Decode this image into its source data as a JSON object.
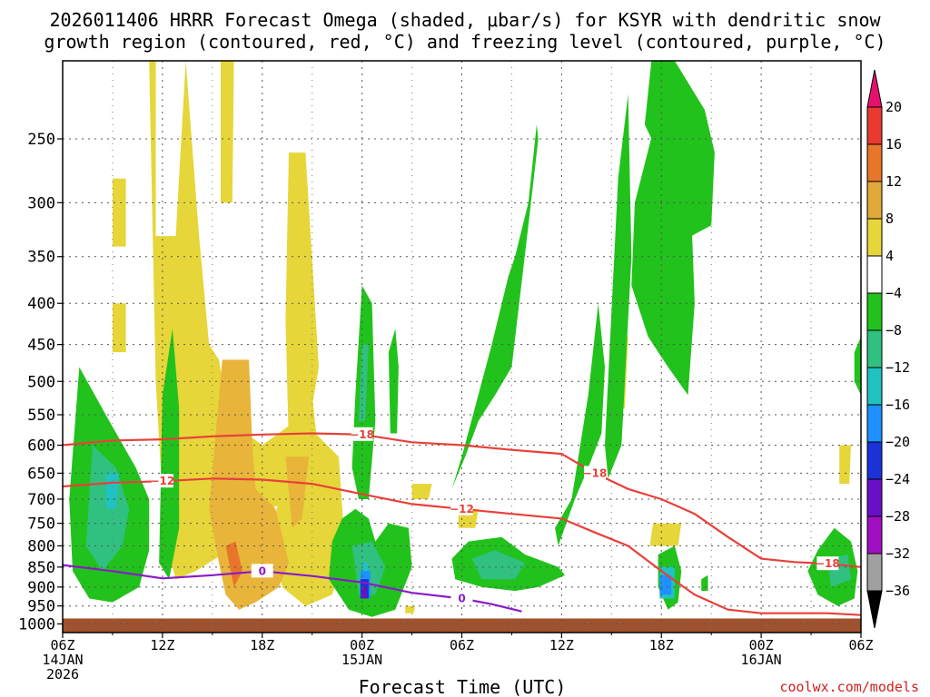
{
  "title_line1": "2026011406 HRRR Forecast Omega (shaded, μbar/s) for KSYR with dendritic snow",
  "title_line2": "growth region (contoured, red, °C) and freezing level (contoured, purple, °C)",
  "credit": "coolwx.com/models",
  "chart_data": {
    "type": "heatmap",
    "xlabel": "Forecast Time (UTC)",
    "ylabel": "",
    "x_unit": "forecast hours from 2026-01-14 06Z",
    "xlim": [
      0,
      48
    ],
    "ylim_hPa": [
      1025,
      200
    ],
    "y_ticks": [
      250,
      300,
      350,
      400,
      450,
      500,
      550,
      600,
      650,
      700,
      750,
      800,
      850,
      900,
      950,
      1000
    ],
    "x_ticks": [
      {
        "h": 0,
        "line1": "06Z",
        "line2": "14JAN",
        "line3": "2026"
      },
      {
        "h": 6,
        "line1": "12Z",
        "line2": "",
        "line3": ""
      },
      {
        "h": 12,
        "line1": "18Z",
        "line2": "",
        "line3": ""
      },
      {
        "h": 18,
        "line1": "00Z",
        "line2": "15JAN",
        "line3": ""
      },
      {
        "h": 24,
        "line1": "06Z",
        "line2": "",
        "line3": ""
      },
      {
        "h": 30,
        "line1": "12Z",
        "line2": "",
        "line3": ""
      },
      {
        "h": 36,
        "line1": "18Z",
        "line2": "",
        "line3": ""
      },
      {
        "h": 42,
        "line1": "00Z",
        "line2": "16JAN",
        "line3": ""
      },
      {
        "h": 48,
        "line1": "06Z",
        "line2": "",
        "line3": ""
      }
    ],
    "colorbar": {
      "labels": [
        "20",
        "16",
        "12",
        "8",
        "4",
        "−4",
        "−8",
        "−12",
        "−16",
        "−20",
        "−24",
        "−28",
        "−32",
        "−36"
      ],
      "values": [
        20,
        16,
        12,
        8,
        4,
        -4,
        -8,
        -12,
        -16,
        -20,
        -24,
        -28,
        -32,
        -36
      ],
      "colors": [
        "#e8106e",
        "#e83a30",
        "#e8752a",
        "#e0a93a",
        "#e6d639",
        "#ffffff",
        "#22c21c",
        "#30c080",
        "#20c2c2",
        "#1e90ff",
        "#1a32d8",
        "#6a10c8",
        "#a010c0",
        "#a0a0a0",
        "#000000"
      ]
    },
    "omega_areas": [
      {
        "color": "#e6d639",
        "hx": [
          5.2,
          5.6,
          5.6,
          6.8,
          7.4,
          7.4,
          8.2,
          8.8,
          9.4,
          10.0,
          12.0,
          14.0,
          15.0,
          15.4,
          14.0,
          12.4,
          11.0,
          9.6,
          8.0,
          6.8,
          6.4,
          6.0,
          5.6
        ],
        "p": [
          200,
          200,
          330,
          330,
          200,
          200,
          330,
          450,
          470,
          560,
          600,
          560,
          520,
          620,
          700,
          720,
          780,
          820,
          860,
          880,
          820,
          700,
          500
        ]
      },
      {
        "color": "#e6d639",
        "hx": [
          13.6,
          14.6,
          15.4,
          14.6,
          13.6,
          13.4
        ],
        "p": [
          260,
          260,
          480,
          600,
          600,
          420
        ]
      },
      {
        "color": "#e6d639",
        "hx": [
          3.0,
          3.8,
          3.8,
          3.0
        ],
        "p": [
          280,
          280,
          340,
          340
        ]
      },
      {
        "color": "#e6d639",
        "hx": [
          3.0,
          3.8,
          3.8,
          3.0
        ],
        "p": [
          400,
          400,
          460,
          460
        ]
      },
      {
        "color": "#e6d639",
        "hx": [
          9.5,
          10.3,
          10.2,
          9.5
        ],
        "p": [
          200,
          200,
          300,
          300
        ]
      },
      {
        "color": "#e6d639",
        "hx": [
          13.8,
          15.2,
          16.6,
          17.0,
          16.2,
          14.6,
          13.2,
          12.6
        ],
        "p": [
          600,
          580,
          620,
          820,
          920,
          950,
          900,
          760
        ]
      },
      {
        "color": "#e6d639",
        "hx": [
          33.2,
          34.0,
          33.8,
          33.2
        ],
        "p": [
          440,
          440,
          540,
          540
        ]
      },
      {
        "color": "#e6d639",
        "hx": [
          35.5,
          37.2,
          37.0,
          35.3
        ],
        "p": [
          750,
          750,
          800,
          800
        ]
      },
      {
        "color": "#e6d639",
        "hx": [
          23.8,
          25.0,
          24.8,
          23.8
        ],
        "p": [
          720,
          720,
          760,
          760
        ]
      },
      {
        "color": "#e6d639",
        "hx": [
          21.0,
          22.2,
          22.0,
          21.0
        ],
        "p": [
          670,
          670,
          700,
          700
        ]
      },
      {
        "color": "#e6d639",
        "hx": [
          46.7,
          47.4,
          47.3,
          46.7
        ],
        "p": [
          600,
          600,
          670,
          670
        ]
      },
      {
        "color": "#e6d639",
        "hx": [
          20.6,
          21.2,
          21.1,
          20.6
        ],
        "p": [
          950,
          950,
          970,
          970
        ]
      },
      {
        "color": "#e8b43a",
        "hx": [
          9.6,
          11.2,
          11.4,
          11.6,
          12.8,
          13.6,
          13.0,
          11.6,
          10.6,
          9.8,
          9.4,
          8.8
        ],
        "p": [
          470,
          470,
          600,
          680,
          720,
          840,
          900,
          940,
          960,
          920,
          840,
          720
        ]
      },
      {
        "color": "#e8b43a",
        "hx": [
          13.4,
          14.8,
          14.4,
          13.8
        ],
        "p": [
          620,
          620,
          740,
          760
        ]
      },
      {
        "color": "#e8752a",
        "hx": [
          9.8,
          10.4,
          10.8,
          10.3
        ],
        "p": [
          800,
          790,
          860,
          900
        ]
      },
      {
        "color": "#22c21c",
        "hx": [
          1.0,
          2.8,
          4.4,
          5.2,
          5.2,
          4.6,
          3.0,
          1.6,
          0.6,
          0.4
        ],
        "p": [
          480,
          560,
          640,
          700,
          810,
          900,
          940,
          930,
          860,
          700
        ]
      },
      {
        "color": "#22c21c",
        "hx": [
          6.0,
          6.6,
          7.0,
          7.0,
          6.4,
          5.8
        ],
        "p": [
          520,
          430,
          540,
          760,
          880,
          840
        ]
      },
      {
        "color": "#22c21c",
        "hx": [
          16.2,
          16.8,
          17.6,
          18.4,
          18.8,
          19.6,
          20.8,
          21.0,
          20.0,
          18.6,
          17.2,
          16.0
        ],
        "p": [
          790,
          740,
          720,
          740,
          790,
          750,
          760,
          850,
          960,
          980,
          960,
          880
        ]
      },
      {
        "color": "#22c21c",
        "hx": [
          17.6,
          18.0,
          18.6,
          18.8,
          18.4,
          17.8,
          17.4
        ],
        "p": [
          520,
          380,
          400,
          560,
          700,
          700,
          640
        ]
      },
      {
        "color": "#22c21c",
        "hx": [
          19.6,
          20.0,
          20.2,
          20.1,
          19.7
        ],
        "p": [
          460,
          430,
          480,
          580,
          580
        ]
      },
      {
        "color": "#22c21c",
        "hx": [
          24.0,
          25.8,
          26.8,
          27.2,
          28.0,
          28.5,
          28.6,
          28.0,
          27.0,
          26.0,
          25.0,
          24.2,
          23.4
        ],
        "p": [
          620,
          450,
          370,
          350,
          300,
          240,
          250,
          320,
          480,
          520,
          560,
          620,
          680
        ]
      },
      {
        "color": "#22c21c",
        "hx": [
          29.6,
          30.6,
          31.6,
          32.2,
          32.6,
          32.4,
          31.6,
          30.8,
          29.8
        ],
        "p": [
          760,
          700,
          520,
          400,
          480,
          580,
          640,
          700,
          800
        ]
      },
      {
        "color": "#22c21c",
        "hx": [
          32.6,
          33.4,
          34.0,
          34.2,
          33.6,
          32.8
        ],
        "p": [
          600,
          280,
          220,
          350,
          600,
          660
        ]
      },
      {
        "color": "#22c21c",
        "hx": [
          34.4,
          35.6,
          36.6,
          37.6,
          38.0,
          37.6,
          36.4,
          35.2,
          34.2
        ],
        "p": [
          300,
          240,
          200,
          240,
          400,
          520,
          480,
          440,
          380
        ]
      },
      {
        "color": "#22c21c",
        "hx": [
          35.4,
          36.8,
          38.6,
          39.2,
          39.0,
          37.8,
          36.8,
          35.8,
          35.0
        ],
        "p": [
          200,
          200,
          230,
          260,
          320,
          330,
          260,
          260,
          240
        ]
      },
      {
        "color": "#22c21c",
        "hx": [
          35.8,
          36.8,
          37.2,
          37.0,
          36.4,
          35.8
        ],
        "p": [
          820,
          800,
          860,
          940,
          960,
          900
        ]
      },
      {
        "color": "#22c21c",
        "hx": [
          23.4,
          24.4,
          26.4,
          27.8,
          29.8,
          30.2,
          28.6,
          27.2,
          25.2,
          23.6
        ],
        "p": [
          830,
          790,
          780,
          820,
          850,
          870,
          900,
          910,
          900,
          880
        ]
      },
      {
        "color": "#22c21c",
        "hx": [
          45.4,
          46.4,
          47.4,
          47.8,
          47.6,
          46.6,
          45.4,
          44.8
        ],
        "p": [
          810,
          760,
          790,
          860,
          930,
          950,
          920,
          860
        ]
      },
      {
        "color": "#22c21c",
        "hx": [
          47.6,
          48.0,
          48.0,
          47.6
        ],
        "p": [
          460,
          440,
          520,
          500
        ]
      },
      {
        "color": "#22c21c",
        "hx": [
          38.4,
          38.8,
          38.8,
          38.4
        ],
        "p": [
          880,
          870,
          910,
          910
        ]
      },
      {
        "color": "#30c080",
        "hx": [
          1.8,
          3.2,
          4.0,
          3.6,
          2.4,
          1.4
        ],
        "p": [
          600,
          640,
          720,
          800,
          860,
          800
        ]
      },
      {
        "color": "#30c080",
        "hx": [
          17.4,
          18.6,
          19.4,
          18.8,
          17.8
        ],
        "p": [
          800,
          790,
          850,
          920,
          920
        ]
      },
      {
        "color": "#30c080",
        "hx": [
          24.6,
          26.0,
          27.8,
          27.2,
          25.2
        ],
        "p": [
          830,
          810,
          840,
          880,
          880
        ]
      },
      {
        "color": "#30c080",
        "hx": [
          18.0,
          18.4,
          18.2,
          17.8
        ],
        "p": [
          450,
          450,
          560,
          560
        ]
      },
      {
        "color": "#30c080",
        "hx": [
          46.0,
          47.2,
          47.4,
          46.2
        ],
        "p": [
          830,
          820,
          880,
          900
        ]
      },
      {
        "color": "#20c2c2",
        "hx": [
          2.6,
          3.4,
          3.2,
          2.6
        ],
        "p": [
          650,
          650,
          720,
          720
        ]
      },
      {
        "color": "#20c2c2",
        "hx": [
          18.0,
          18.4,
          18.4,
          18.0
        ],
        "p": [
          840,
          840,
          920,
          920
        ]
      },
      {
        "color": "#20c2c2",
        "hx": [
          35.9,
          36.8,
          36.8,
          35.9
        ],
        "p": [
          850,
          850,
          930,
          930
        ]
      },
      {
        "color": "#1e90ff",
        "hx": [
          17.9,
          18.5,
          18.5,
          17.9
        ],
        "p": [
          860,
          860,
          930,
          930
        ]
      },
      {
        "color": "#1e90ff",
        "hx": [
          35.9,
          36.6,
          36.6,
          35.9
        ],
        "p": [
          870,
          870,
          920,
          920
        ]
      },
      {
        "color": "#1a32d8",
        "hx": [
          17.9,
          18.4,
          18.4,
          17.9
        ],
        "p": [
          880,
          880,
          930,
          930
        ]
      },
      {
        "color": "#6a10c8",
        "hx": [
          18.0,
          18.3,
          18.3,
          18.0
        ],
        "p": [
          900,
          900,
          930,
          930
        ]
      }
    ],
    "isotherm_m18": {
      "label": "−18",
      "hx": [
        0,
        3,
        6,
        9,
        12,
        15,
        18,
        21,
        24,
        27,
        30,
        32,
        34,
        36,
        38,
        40,
        42,
        44,
        46,
        48
      ],
      "p": [
        600,
        592,
        590,
        585,
        582,
        580,
        582,
        595,
        600,
        608,
        615,
        650,
        680,
        700,
        730,
        780,
        830,
        838,
        842,
        850
      ]
    },
    "isotherm_m12": {
      "label": "−12",
      "hx": [
        0,
        3,
        6,
        9,
        12,
        15,
        18,
        21,
        24,
        27,
        30,
        32,
        34,
        36,
        38,
        40,
        42,
        44,
        46,
        48
      ],
      "p": [
        675,
        668,
        665,
        660,
        662,
        670,
        690,
        710,
        720,
        730,
        740,
        770,
        800,
        860,
        920,
        960,
        970,
        970,
        970,
        975
      ]
    },
    "freezing_level": {
      "label": "0",
      "hx": [
        0,
        3,
        6,
        9,
        12,
        15,
        18,
        21,
        24,
        25.8,
        27.6
      ],
      "p": [
        845,
        860,
        878,
        870,
        860,
        872,
        888,
        915,
        930,
        945,
        965
      ]
    },
    "ground_p": 1000
  }
}
